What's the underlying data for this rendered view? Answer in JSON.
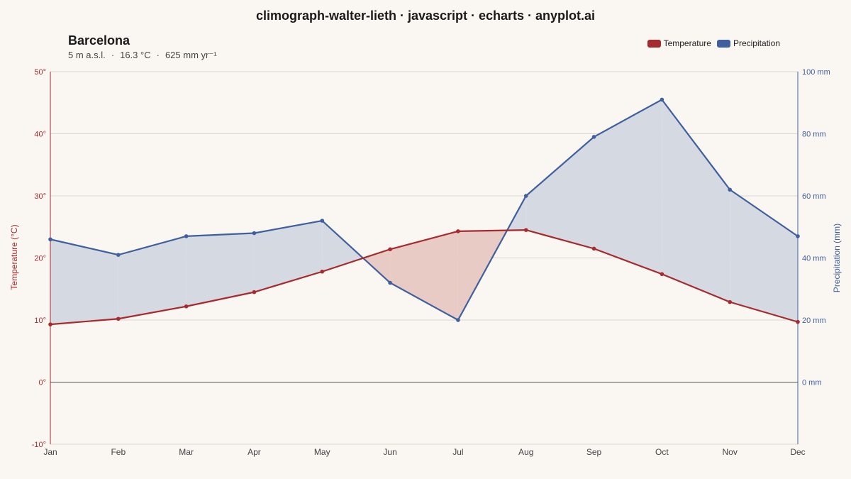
{
  "title": "climograph-walter-lieth · javascript · echarts · anyplot.ai",
  "station": {
    "name": "Barcelona",
    "elevation": "5 m a.s.l.",
    "mean_temp": "16.3 °C",
    "annual_precip": "625 mm yr⁻¹"
  },
  "legend": {
    "temperature": "Temperature",
    "precipitation": "Precipitation"
  },
  "colors": {
    "temperature": "#a8292e",
    "precipitation": "#3f5f9e",
    "arid_fill": "#e8cbc4",
    "humid_fill": "#d5dae2",
    "overlap_fill": "#c9b5b9",
    "grid": "#d9d6d0",
    "zero_line": "#555555"
  },
  "chart_data": {
    "type": "line",
    "categories": [
      "Jan",
      "Feb",
      "Mar",
      "Apr",
      "May",
      "Jun",
      "Jul",
      "Aug",
      "Sep",
      "Oct",
      "Nov",
      "Dec"
    ],
    "series": [
      {
        "name": "Temperature",
        "axis": "left",
        "values": [
          9.3,
          10.2,
          12.2,
          14.5,
          17.8,
          21.4,
          24.3,
          24.5,
          21.5,
          17.4,
          12.9,
          9.7
        ]
      },
      {
        "name": "Precipitation",
        "axis": "right",
        "values": [
          46,
          41,
          47,
          48,
          52,
          32,
          20,
          60,
          79,
          91,
          62,
          47
        ]
      }
    ],
    "y_left": {
      "label": "Temperature (°C)",
      "min": -10,
      "max": 50,
      "ticks": [
        "50°",
        "40°",
        "30°",
        "20°",
        "10°",
        "0°",
        "-10°"
      ]
    },
    "y_right": {
      "label": "Precipitation (mm)",
      "min": -20,
      "max": 100,
      "ticks": [
        "100 mm",
        "80 mm",
        "60 mm",
        "40 mm",
        "20 mm",
        "0 mm"
      ]
    },
    "grid": true,
    "legend_position": "top-right"
  }
}
